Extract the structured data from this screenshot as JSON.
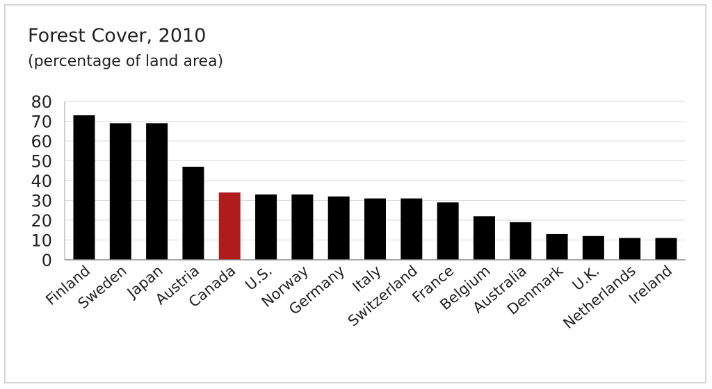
{
  "chart_data": {
    "type": "bar",
    "title": "Forest Cover, 2010",
    "subtitle": "(percentage of land area)",
    "xlabel": "",
    "ylabel": "",
    "ylim": [
      0,
      80
    ],
    "yticks": [
      "0",
      "10",
      "20",
      "30",
      "40",
      "50",
      "60",
      "70",
      "80"
    ],
    "grid": true,
    "categories": [
      "Finland",
      "Sweden",
      "Japan",
      "Austria",
      "Canada",
      "U.S.",
      "Norway",
      "Germany",
      "Italy",
      "Switzerland",
      "France",
      "Belgium",
      "Australia",
      "Denmark",
      "U.K.",
      "Netherlands",
      "Ireland"
    ],
    "values": [
      73,
      69,
      69,
      47,
      34,
      33,
      33,
      32,
      31,
      31,
      29,
      22,
      19,
      13,
      12,
      11,
      11
    ],
    "bar_color": "#000000",
    "highlight_category": "Canada",
    "highlight_color": "#b01c1c"
  }
}
